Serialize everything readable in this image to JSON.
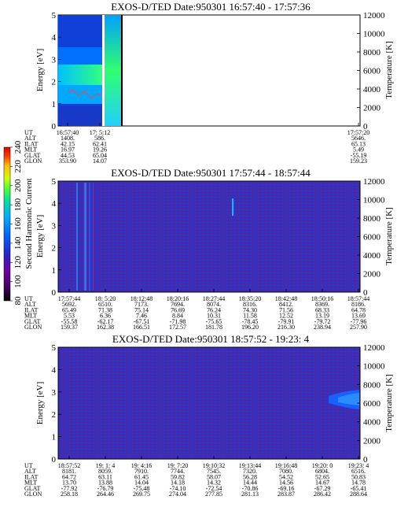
{
  "figure": {
    "colorbar": {
      "label": "Second Harmonic Current",
      "ticks": [
        "80",
        "100",
        "120",
        "140",
        "160",
        "180",
        "200",
        "220",
        "240"
      ],
      "colors": [
        "#000000",
        "#4a006a",
        "#6f00a0",
        "#2a20d0",
        "#0060ff",
        "#00b0ff",
        "#00e0a0",
        "#40ff40",
        "#d0ff00",
        "#ffc000",
        "#ff4000",
        "#e00000"
      ]
    },
    "ephemeris_labels": [
      "UT",
      "ALT",
      "ILAT",
      "MLT",
      "GLAT",
      "GLON"
    ],
    "panels": [
      {
        "title": "EXOS-D/TED   Date:950301   16:57:40 - 17:57:36",
        "ylabel": "Energy [eV]",
        "yticks": [
          "0",
          "1",
          "2",
          "3",
          "4",
          "5"
        ],
        "y2label": "Temperature [K]",
        "y2ticks": [
          "0",
          "2000",
          "4000",
          "6000",
          "8000",
          "10000",
          "12000"
        ],
        "columns": [
          [
            "16:57:40",
            "1408.",
            "42.15",
            "16.97",
            "44.53",
            "353.90"
          ],
          [
            "17: 5:12",
            "586.",
            "62.41",
            "19.26",
            "65.04",
            "14.07"
          ],
          [
            "17:57:20",
            "5646.",
            "65.13",
            "5.49",
            "-55.19",
            "159.23"
          ]
        ]
      },
      {
        "title": "EXOS-D/TED   Date:950301   17:57:44 - 18:57:44",
        "ylabel": "Energy [eV]",
        "yticks": [
          "0",
          "1",
          "2",
          "3",
          "4",
          "5"
        ],
        "y2label": "Temperature [K]",
        "y2ticks": [
          "0",
          "2000",
          "4000",
          "6000",
          "8000",
          "10000",
          "12000"
        ],
        "columns": [
          [
            "17:57:44",
            "5692.",
            "65.49",
            "5.53",
            "-55.58",
            "159.37"
          ],
          [
            "18: 5:20",
            "6510.",
            "71.38",
            "6.36",
            "-62.17",
            "162.38"
          ],
          [
            "18:12:48",
            "7173.",
            "75.14",
            "7.46",
            "-67.51",
            "166.51"
          ],
          [
            "18:20:16",
            "7694.",
            "76.69",
            "8.84",
            "-71.98",
            "172.57"
          ],
          [
            "18:27:44",
            "8074.",
            "76.24",
            "10.31",
            "-75.65",
            "181.78"
          ],
          [
            "18:35:20",
            "8316.",
            "74.30",
            "11.58",
            "-78.45",
            "196.20"
          ],
          [
            "18:42:48",
            "8412.",
            "71.56",
            "12.52",
            "-79.91",
            "216.30"
          ],
          [
            "18:50:16",
            "8369.",
            "68.33",
            "13.19",
            "-79.72",
            "238.94"
          ],
          [
            "18:57:44",
            "8186.",
            "64.78",
            "13.69",
            "-77.96",
            "257.90"
          ]
        ]
      },
      {
        "title": "EXOS-D/TED   Date:950301   18:57:52 - 19:23: 4",
        "ylabel": "Energy [eV]",
        "yticks": [
          "0",
          "1",
          "2",
          "3",
          "4",
          "5"
        ],
        "y2label": "Temperature [K]",
        "y2ticks": [
          "0",
          "2000",
          "4000",
          "6000",
          "8000",
          "10000",
          "12000"
        ],
        "columns": [
          [
            "18:57:52",
            "8181.",
            "64.72",
            "13.70",
            "-77.92",
            "258.18"
          ],
          [
            "19: 1: 4",
            "8059.",
            "63.11",
            "13.88",
            "-76.79",
            "264.46"
          ],
          [
            "19: 4:16",
            "7910.",
            "61.45",
            "14.04",
            "-75.48",
            "269.75"
          ],
          [
            "19: 7:20",
            "7744.",
            "59.82",
            "14.18",
            "-74.10",
            "274.04"
          ],
          [
            "19:10:32",
            "7545.",
            "58.07",
            "14.32",
            "-72.54",
            "277.85"
          ],
          [
            "19:13:44",
            "7320.",
            "56.28",
            "14.44",
            "-70.86",
            "281.13"
          ],
          [
            "19:16:48",
            "7080.",
            "54.52",
            "14.56",
            "-69.16",
            "283.87"
          ],
          [
            "19:20: 0",
            "6804.",
            "52.65",
            "14.67",
            "-67.29",
            "286.42"
          ],
          [
            "19:23: 4",
            "6516.",
            "50.83",
            "14.78",
            "-65.41",
            "288.64"
          ]
        ]
      }
    ]
  }
}
